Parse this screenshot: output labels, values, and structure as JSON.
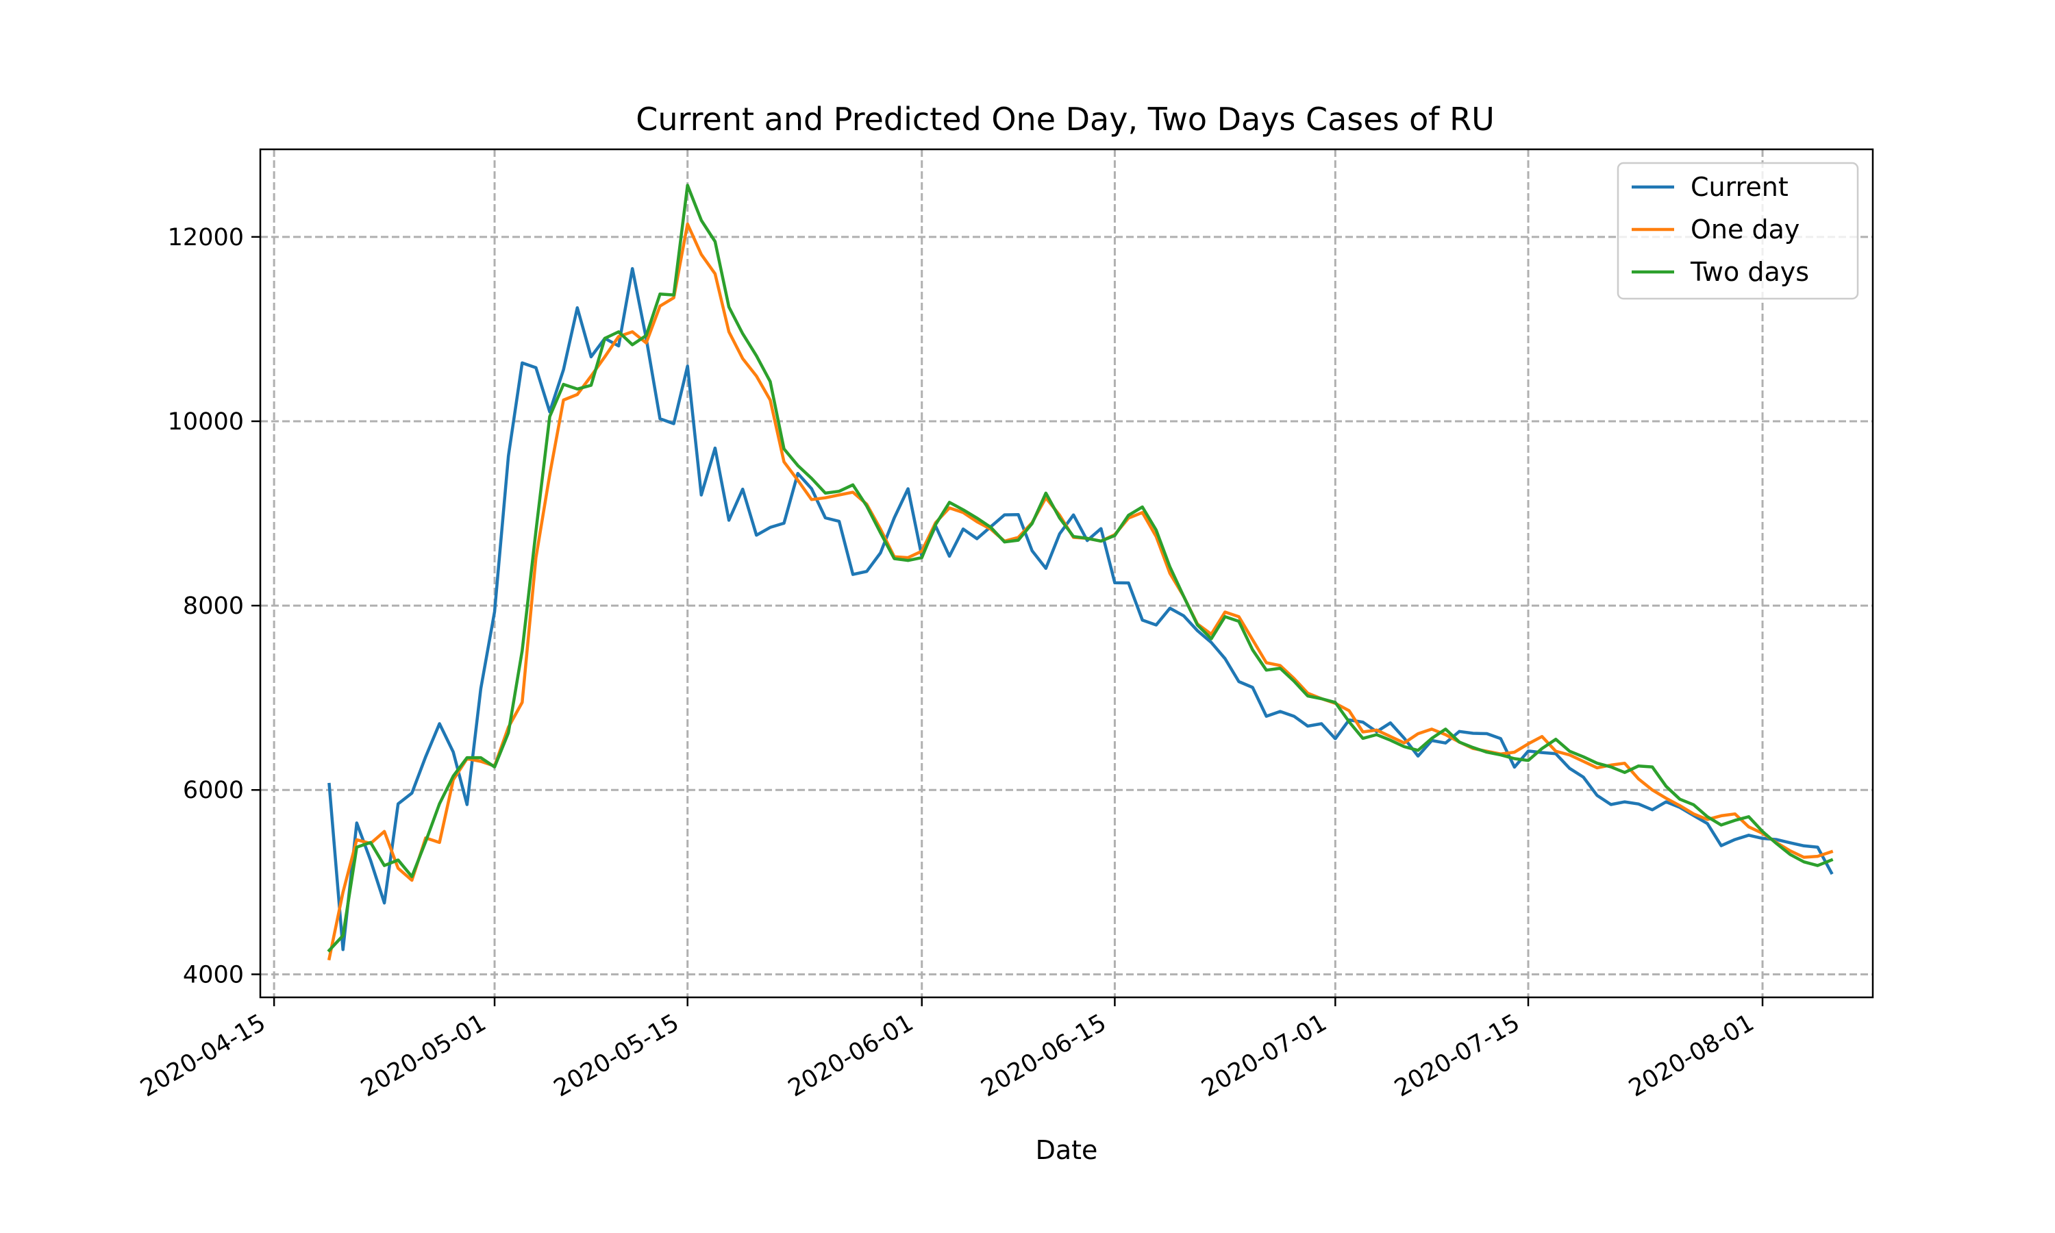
{
  "chart_data": {
    "type": "line",
    "title": "Current and Predicted One Day, Two Days Cases of RU",
    "xlabel": "Date",
    "ylabel": "",
    "x_start": "2020-04-19",
    "x_ticks": [
      "2020-04-15",
      "2020-05-01",
      "2020-05-15",
      "2020-06-01",
      "2020-06-15",
      "2020-07-01",
      "2020-07-15",
      "2020-08-01"
    ],
    "y_ticks": [
      4000,
      6000,
      8000,
      10000,
      12000
    ],
    "xlim": [
      "2020-04-14",
      "2020-08-09"
    ],
    "ylim": [
      3750,
      12950
    ],
    "grid": true,
    "legend_position": "top-right",
    "series": [
      {
        "name": "Current",
        "color": "#1f77b4",
        "values": [
          6060,
          4268,
          5642,
          5236,
          4774,
          5849,
          5966,
          6361,
          6719,
          6411,
          5841,
          7099,
          7933,
          9623,
          10633,
          10581,
          10102,
          10559,
          11231,
          10699,
          10899,
          10817,
          11656,
          10899,
          10028,
          9974,
          10598,
          9200,
          9709,
          8926,
          9263,
          8764,
          8849,
          8894,
          9434,
          9268,
          8952,
          8915,
          8338,
          8371,
          8572,
          8952,
          9268,
          8536,
          8863,
          8536,
          8831,
          8726,
          8855,
          8985,
          8987,
          8595,
          8404,
          8779,
          8984,
          8706,
          8835,
          8248,
          8246,
          7843,
          7790,
          7972,
          7889,
          7728,
          7600,
          7425,
          7176,
          7113,
          6800,
          6852,
          6800,
          6693,
          6719,
          6556,
          6760,
          6736,
          6632,
          6728,
          6562,
          6368,
          6537,
          6509,
          6635,
          6615,
          6611,
          6557,
          6248,
          6422,
          6406,
          6393,
          6234,
          6139,
          5940,
          5842,
          5871,
          5848,
          5785,
          5871,
          5811,
          5723,
          5635,
          5395,
          5462,
          5509,
          5475,
          5462,
          5427,
          5394,
          5379,
          5102
        ]
      },
      {
        "name": "One day",
        "color": "#ff7f0e",
        "values": [
          4170,
          4890,
          5460,
          5420,
          5550,
          5150,
          5020,
          5480,
          5430,
          6110,
          6340,
          6310,
          6260,
          6680,
          6950,
          8520,
          9420,
          10230,
          10290,
          10490,
          10700,
          10920,
          10970,
          10850,
          11250,
          11340,
          12140,
          11810,
          11600,
          10970,
          10680,
          10490,
          10230,
          9560,
          9360,
          9150,
          9170,
          9200,
          9230,
          9100,
          8830,
          8530,
          8520,
          8590,
          8900,
          9060,
          9010,
          8910,
          8830,
          8700,
          8740,
          8900,
          9170,
          8980,
          8740,
          8730,
          8700,
          8770,
          8950,
          9010,
          8750,
          8350,
          8100,
          7800,
          7690,
          7930,
          7880,
          7630,
          7380,
          7350,
          7210,
          7050,
          6990,
          6940,
          6860,
          6630,
          6650,
          6580,
          6510,
          6610,
          6660,
          6600,
          6520,
          6450,
          6420,
          6390,
          6410,
          6500,
          6580,
          6420,
          6380,
          6310,
          6240,
          6270,
          6290,
          6120,
          6000,
          5910,
          5830,
          5740,
          5680,
          5720,
          5740,
          5600,
          5530,
          5430,
          5340,
          5270,
          5280,
          5330
        ]
      },
      {
        "name": "Two days",
        "color": "#2ca02c",
        "values": [
          4260,
          4420,
          5380,
          5430,
          5180,
          5240,
          5060,
          5440,
          5850,
          6150,
          6350,
          6350,
          6250,
          6620,
          7510,
          8810,
          10050,
          10400,
          10350,
          10390,
          10900,
          10970,
          10830,
          10930,
          11380,
          11370,
          12560,
          12180,
          11950,
          11240,
          10950,
          10710,
          10430,
          9700,
          9520,
          9380,
          9220,
          9240,
          9310,
          9080,
          8790,
          8510,
          8490,
          8520,
          8880,
          9120,
          9040,
          8950,
          8850,
          8690,
          8710,
          8890,
          9220,
          8950,
          8750,
          8730,
          8700,
          8760,
          8980,
          9070,
          8820,
          8420,
          8100,
          7790,
          7640,
          7880,
          7830,
          7520,
          7300,
          7320,
          7180,
          7020,
          6990,
          6950,
          6740,
          6560,
          6600,
          6540,
          6470,
          6430,
          6560,
          6660,
          6520,
          6460,
          6410,
          6380,
          6340,
          6320,
          6450,
          6550,
          6420,
          6360,
          6290,
          6250,
          6190,
          6260,
          6250,
          6040,
          5900,
          5840,
          5710,
          5620,
          5670,
          5710,
          5550,
          5420,
          5300,
          5220,
          5180,
          5240
        ]
      }
    ]
  }
}
